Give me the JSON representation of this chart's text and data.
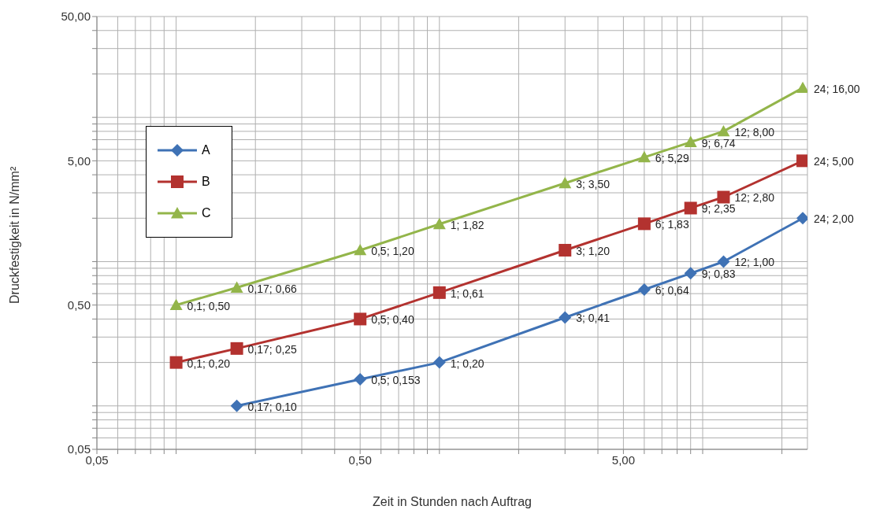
{
  "chart_data": {
    "type": "line",
    "xlabel": "Zeit in Stunden nach Auftrag",
    "ylabel": "Druckfestigkeit in N/mm²",
    "log": "xy",
    "grid": true,
    "legend": "left",
    "xlim": [
      0.05,
      25
    ],
    "ylim": [
      0.05,
      50
    ],
    "xticks": [
      {
        "value": 0.05,
        "label": "0,05"
      },
      {
        "value": 0.06,
        "label": null
      },
      {
        "value": 0.07,
        "label": null
      },
      {
        "value": 0.08,
        "label": null
      },
      {
        "value": 0.09,
        "label": null
      },
      {
        "value": 0.1,
        "label": null
      },
      {
        "value": 0.2,
        "label": null
      },
      {
        "value": 0.3,
        "label": null
      },
      {
        "value": 0.4,
        "label": null
      },
      {
        "value": 0.5,
        "label": "0,50"
      },
      {
        "value": 0.6,
        "label": null
      },
      {
        "value": 0.7,
        "label": null
      },
      {
        "value": 0.8,
        "label": null
      },
      {
        "value": 0.9,
        "label": null
      },
      {
        "value": 1,
        "label": null
      },
      {
        "value": 2,
        "label": null
      },
      {
        "value": 3,
        "label": null
      },
      {
        "value": 4,
        "label": null
      },
      {
        "value": 5,
        "label": "5,00"
      },
      {
        "value": 6,
        "label": null
      },
      {
        "value": 7,
        "label": null
      },
      {
        "value": 8,
        "label": null
      },
      {
        "value": 9,
        "label": null
      },
      {
        "value": 10,
        "label": null
      },
      {
        "value": 20,
        "label": null
      }
    ],
    "yticks": [
      {
        "value": 0.05,
        "label": "0,05"
      },
      {
        "value": 0.06,
        "label": null
      },
      {
        "value": 0.07,
        "label": null
      },
      {
        "value": 0.08,
        "label": null
      },
      {
        "value": 0.09,
        "label": null
      },
      {
        "value": 0.1,
        "label": null
      },
      {
        "value": 0.2,
        "label": null
      },
      {
        "value": 0.3,
        "label": null
      },
      {
        "value": 0.4,
        "label": null
      },
      {
        "value": 0.5,
        "label": "0,50"
      },
      {
        "value": 0.6,
        "label": null
      },
      {
        "value": 0.7,
        "label": null
      },
      {
        "value": 0.8,
        "label": null
      },
      {
        "value": 0.9,
        "label": null
      },
      {
        "value": 1,
        "label": null
      },
      {
        "value": 2,
        "label": null
      },
      {
        "value": 3,
        "label": null
      },
      {
        "value": 4,
        "label": null
      },
      {
        "value": 5,
        "label": "5,00"
      },
      {
        "value": 6,
        "label": null
      },
      {
        "value": 7,
        "label": null
      },
      {
        "value": 8,
        "label": null
      },
      {
        "value": 9,
        "label": null
      },
      {
        "value": 10,
        "label": null
      },
      {
        "value": 20,
        "label": null
      },
      {
        "value": 30,
        "label": null
      },
      {
        "value": 40,
        "label": null
      },
      {
        "value": 50,
        "label": "50,00"
      }
    ],
    "series": [
      {
        "name": "A",
        "color": "#3f72b5",
        "marker": "diamond",
        "x": [
          0.17,
          0.5,
          1,
          3,
          6,
          9,
          12,
          24
        ],
        "values": [
          0.1,
          0.153,
          0.2,
          0.41,
          0.64,
          0.83,
          1.0,
          2.0
        ],
        "value_labels": [
          "0,17; 0,10",
          "0,5; 0,153",
          "1; 0,20",
          "3; 0,41",
          "6; 0,64",
          "9; 0,83",
          "12; 1,00",
          "24; 2,00"
        ]
      },
      {
        "name": "B",
        "color": "#b3322f",
        "marker": "square",
        "x": [
          0.1,
          0.17,
          0.5,
          1,
          3,
          6,
          9,
          12,
          24
        ],
        "values": [
          0.2,
          0.25,
          0.4,
          0.61,
          1.2,
          1.83,
          2.35,
          2.8,
          5.0
        ],
        "value_labels": [
          "0,1; 0,20",
          "0,17; 0,25",
          "0,5; 0,40",
          "1; 0,61",
          "3; 1,20",
          "6; 1,83",
          "9; 2,35",
          "12; 2,80",
          "24; 5,00"
        ]
      },
      {
        "name": "C",
        "color": "#93b54a",
        "marker": "triangle",
        "x": [
          0.1,
          0.17,
          0.5,
          1,
          3,
          6,
          9,
          12,
          24
        ],
        "values": [
          0.5,
          0.66,
          1.2,
          1.82,
          3.5,
          5.29,
          6.74,
          8.0,
          16.0
        ],
        "value_labels": [
          "0,1; 0,50",
          "0,17; 0,66",
          "0,5; 1,20",
          "1; 1,82",
          "3; 3,50",
          "6; 5,29",
          "9; 6,74",
          "12; 8,00",
          "24; 16,00"
        ]
      }
    ]
  }
}
